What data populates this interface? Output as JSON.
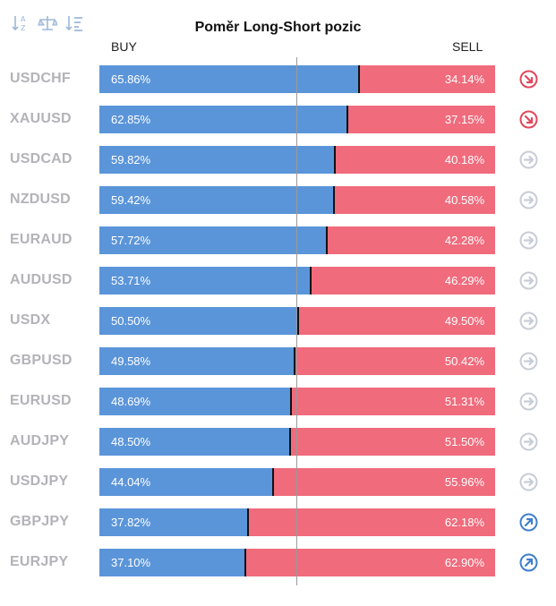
{
  "header": {
    "title": "Poměr Long-Short pozic",
    "buy_label": "BUY",
    "sell_label": "SELL"
  },
  "toolbar": [
    {
      "name": "sort-alpha-icon"
    },
    {
      "name": "balance-icon"
    },
    {
      "name": "sort-list-icon"
    }
  ],
  "colors": {
    "buy": "#5b95d9",
    "sell": "#f06b7c",
    "signal_down": "#e2475a",
    "signal_neutral": "#c7cdd6",
    "signal_up": "#3f7fcc"
  },
  "rows": [
    {
      "symbol": "USDCHF",
      "buy": "65.86%",
      "sell": "34.14%",
      "buy_pct": 65.86,
      "signal": "down"
    },
    {
      "symbol": "XAUUSD",
      "buy": "62.85%",
      "sell": "37.15%",
      "buy_pct": 62.85,
      "signal": "down"
    },
    {
      "symbol": "USDCAD",
      "buy": "59.82%",
      "sell": "40.18%",
      "buy_pct": 59.82,
      "signal": "neutral"
    },
    {
      "symbol": "NZDUSD",
      "buy": "59.42%",
      "sell": "40.58%",
      "buy_pct": 59.42,
      "signal": "neutral"
    },
    {
      "symbol": "EURAUD",
      "buy": "57.72%",
      "sell": "42.28%",
      "buy_pct": 57.72,
      "signal": "neutral"
    },
    {
      "symbol": "AUDUSD",
      "buy": "53.71%",
      "sell": "46.29%",
      "buy_pct": 53.71,
      "signal": "neutral"
    },
    {
      "symbol": "USDX",
      "buy": "50.50%",
      "sell": "49.50%",
      "buy_pct": 50.5,
      "signal": "neutral"
    },
    {
      "symbol": "GBPUSD",
      "buy": "49.58%",
      "sell": "50.42%",
      "buy_pct": 49.58,
      "signal": "neutral"
    },
    {
      "symbol": "EURUSD",
      "buy": "48.69%",
      "sell": "51.31%",
      "buy_pct": 48.69,
      "signal": "neutral"
    },
    {
      "symbol": "AUDJPY",
      "buy": "48.50%",
      "sell": "51.50%",
      "buy_pct": 48.5,
      "signal": "neutral"
    },
    {
      "symbol": "USDJPY",
      "buy": "44.04%",
      "sell": "55.96%",
      "buy_pct": 44.04,
      "signal": "neutral"
    },
    {
      "symbol": "GBPJPY",
      "buy": "37.82%",
      "sell": "62.18%",
      "buy_pct": 37.82,
      "signal": "up"
    },
    {
      "symbol": "EURJPY",
      "buy": "37.10%",
      "sell": "62.90%",
      "buy_pct": 37.1,
      "signal": "up"
    }
  ]
}
